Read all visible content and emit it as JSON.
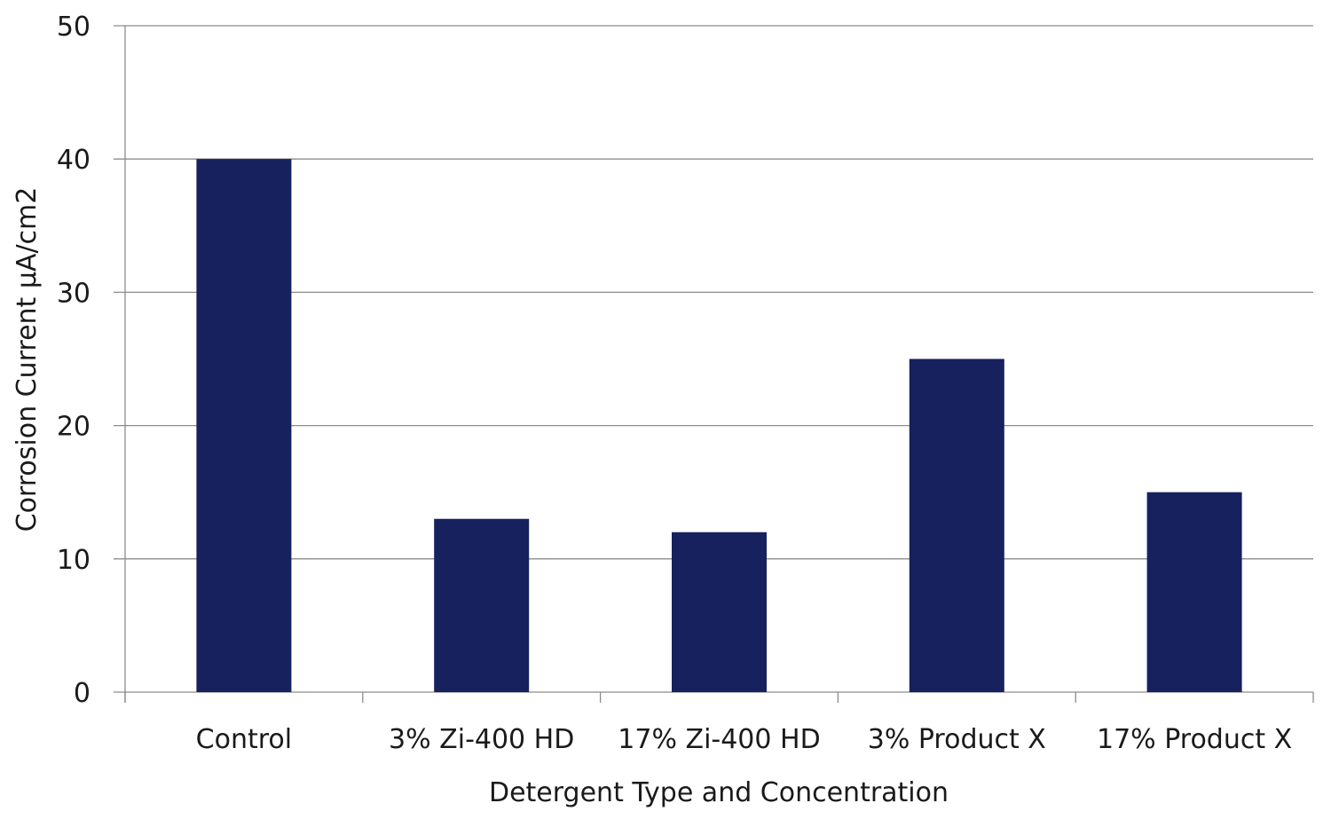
{
  "chart_data": {
    "type": "bar",
    "title": "",
    "xlabel": "Detergent Type and Concentration",
    "ylabel": "Corrosion Current   µA/cm2",
    "categories": [
      "Control",
      "3% Zi-400 HD",
      "17% Zi-400 HD",
      "3% Product X",
      "17% Product X"
    ],
    "values": [
      40,
      13,
      12,
      25,
      15
    ],
    "ylim": [
      0,
      50
    ],
    "yticks": [
      0,
      10,
      20,
      30,
      40,
      50
    ],
    "grid": true,
    "legend": null,
    "bar_color": "#17215E",
    "grid_color": "#8C8C8C"
  }
}
